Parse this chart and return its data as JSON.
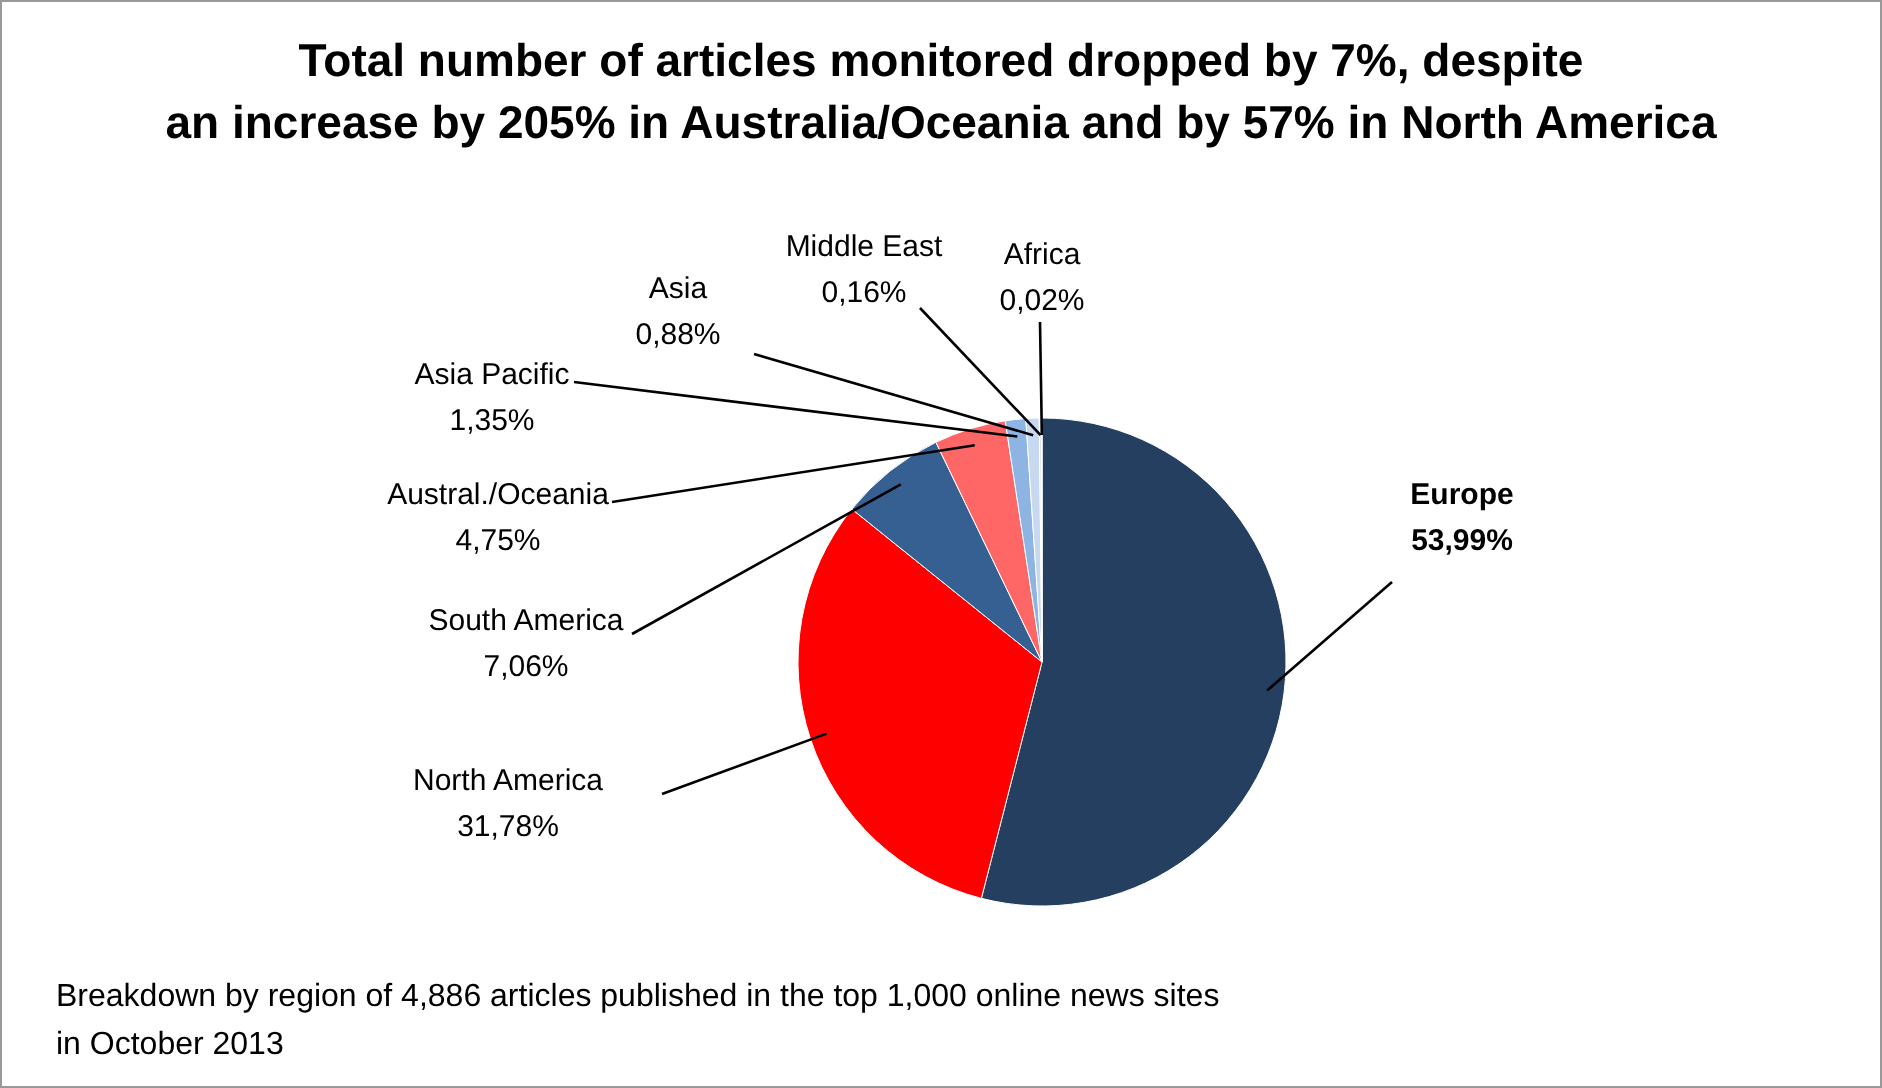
{
  "chart_data": {
    "type": "pie",
    "title": "Total number of articles monitored dropped by 7%, despite\nan increase by 205% in Australia/Oceania and by 57% in North America",
    "categories": [
      "Europe",
      "North America",
      "South America",
      "Austral./Oceania",
      "Asia Pacific",
      "Asia",
      "Middle East",
      "Africa"
    ],
    "values": [
      53.99,
      31.78,
      7.06,
      4.75,
      1.35,
      0.88,
      0.16,
      0.02
    ],
    "value_labels": [
      "53,99%",
      "31,78%",
      "7,06%",
      "4,75%",
      "1,35%",
      "0,88%",
      "0,16%",
      "0,02%"
    ],
    "colors": [
      "#243f60",
      "#ff0000",
      "#376092",
      "#ff6666",
      "#8eb4e3",
      "#c6d9f1",
      "#dbe5f1",
      "#f2f2f2"
    ],
    "annotations": [
      "Breakdown  by region of 4,886 articles published in the top 1,000 online news sites in October 2013"
    ]
  }
}
